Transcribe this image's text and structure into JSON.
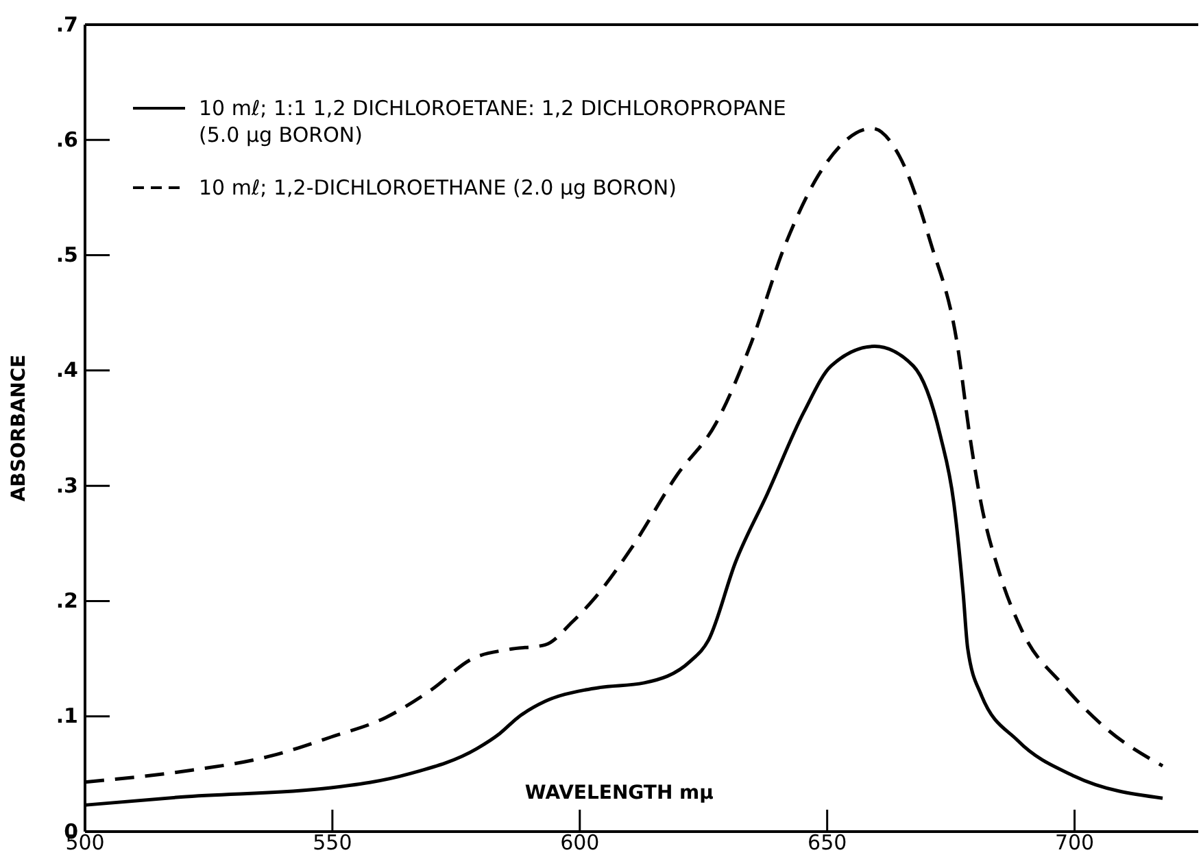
{
  "chart_data": {
    "type": "line",
    "xlabel": "WAVELENGTH mμ",
    "ylabel": "ABSORBANCE",
    "xlim": [
      500,
      725
    ],
    "xticks": [
      500,
      550,
      600,
      650,
      700
    ],
    "ylim": [
      0,
      0.7
    ],
    "yticks": [
      {
        "value": 0,
        "label": "0"
      },
      {
        "value": 0.1,
        "label": ".1"
      },
      {
        "value": 0.2,
        "label": ".2"
      },
      {
        "value": 0.3,
        "label": ".3"
      },
      {
        "value": 0.4,
        "label": ".4"
      },
      {
        "value": 0.5,
        "label": ".5"
      },
      {
        "value": 0.6,
        "label": ".6"
      },
      {
        "value": 0.7,
        "label": ".7"
      }
    ],
    "grid": false,
    "legend": "top left",
    "series": [
      {
        "name": "10 mℓ; 1:1 1,2 DICHLOROETANE: 1,2 DICHLOROPROPANE (5.0 μg BORON)",
        "color": "#000000",
        "line_style": "solid",
        "x": [
          500,
          519.4,
          549.7,
          565.4,
          579.2,
          583.8,
          587.5,
          593,
          601.2,
          604,
          613,
          622.4,
          626,
          631.5,
          637.9,
          645.3,
          650.8,
          659.6,
          667.4,
          672.9,
          675.6,
          677.5,
          678.4,
          681.1,
          688.5,
          700,
          717.8
        ],
        "values": [
          0.023,
          0.03,
          0.038,
          0.05,
          0.072,
          0.085,
          0.099,
          0.113,
          0.123,
          0.125,
          0.129,
          0.148,
          0.166,
          0.234,
          0.293,
          0.364,
          0.404,
          0.421,
          0.404,
          0.343,
          0.285,
          0.206,
          0.159,
          0.119,
          0.079,
          0.048,
          0.029
        ]
      },
      {
        "name": "10 mℓ; 1,2-DICHLOROETHANE (2.0 μg BORON)",
        "color": "#000000",
        "line_style": "dashed",
        "x": [
          500,
          519.4,
          537.9,
          549.7,
          560.8,
          570,
          578.3,
          585.6,
          593,
          598.5,
          602.5,
          610.3,
          619.6,
          627.5,
          634.3,
          641.7,
          648.9,
          659.1,
          664.6,
          670.9,
          676.4,
          678.8,
          681.1,
          684.7,
          689.4,
          697.7,
          706.8,
          717.8
        ],
        "values": [
          0.043,
          0.052,
          0.066,
          0.082,
          0.099,
          0.123,
          0.15,
          0.158,
          0.162,
          0.182,
          0.2,
          0.245,
          0.309,
          0.354,
          0.42,
          0.511,
          0.574,
          0.61,
          0.586,
          0.511,
          0.42,
          0.344,
          0.285,
          0.226,
          0.174,
          0.127,
          0.088,
          0.057
        ]
      }
    ]
  }
}
